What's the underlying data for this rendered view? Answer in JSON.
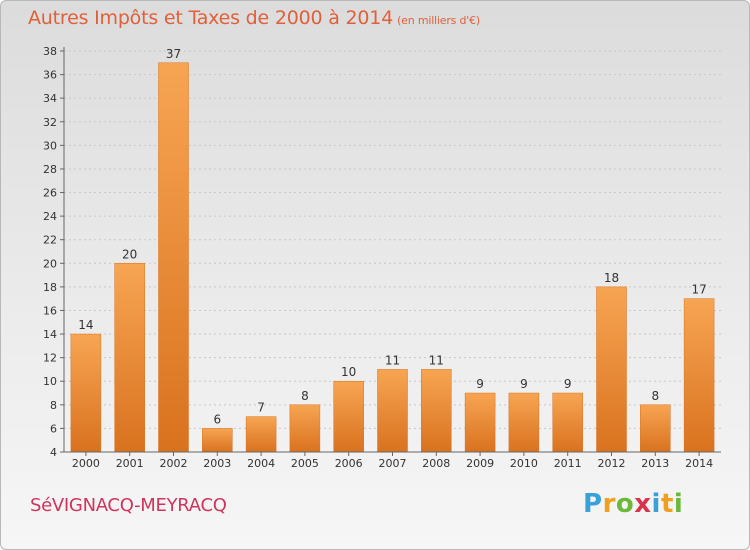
{
  "header": {
    "title": "Autres Impôts et Taxes de 2000 à 2014",
    "subtitle": "(en milliers d'€)"
  },
  "footer": {
    "commune": "SéVIGNACQ-MEYRACQ",
    "brand_letters": [
      "P",
      "r",
      "o",
      "x",
      "i",
      "t",
      "i"
    ],
    "brand_colors": [
      "#3aa0d8",
      "#f0a020",
      "#6cb83a",
      "#d8344c",
      "#3aa0d8",
      "#f0a020",
      "#6cb83a"
    ]
  },
  "colors": {
    "title": "#e0603a",
    "commune": "#d0345c",
    "bar_light": "#f7a553",
    "bar_dark": "#d9721f",
    "axis": "#666666"
  },
  "chart_data": {
    "type": "bar",
    "title": "Autres Impôts et Taxes de 2000 à 2014",
    "subtitle": "(en milliers d'€)",
    "xlabel": "",
    "ylabel": "",
    "categories": [
      "2000",
      "2001",
      "2002",
      "2003",
      "2004",
      "2005",
      "2006",
      "2007",
      "2008",
      "2009",
      "2010",
      "2011",
      "2012",
      "2013",
      "2014"
    ],
    "values": [
      14,
      20,
      37,
      6,
      7,
      8,
      10,
      11,
      11,
      9,
      9,
      9,
      18,
      8,
      17
    ],
    "ylim": [
      4,
      38
    ],
    "yticks": [
      4,
      6,
      8,
      10,
      12,
      14,
      16,
      18,
      20,
      22,
      24,
      26,
      28,
      30,
      32,
      34,
      36,
      38
    ],
    "grid": true,
    "data_labels": true
  }
}
